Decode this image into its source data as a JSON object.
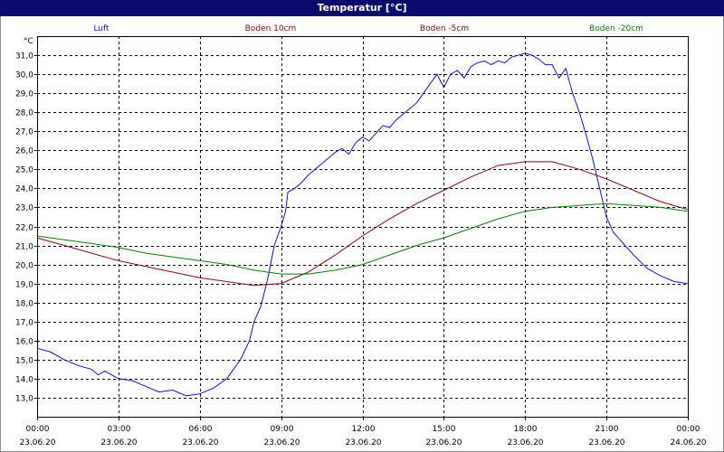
{
  "window": {
    "title": "Temperatur [°C]"
  },
  "chart_data": {
    "type": "line",
    "title": "Temperatur [°C]",
    "ylabel": "°C",
    "ylim": [
      12,
      32
    ],
    "xlim": [
      "23.06.20 00:00",
      "24.06.20 00:00"
    ],
    "grid": true,
    "legend_position": "top",
    "y_ticks": [
      "13,0",
      "14,0",
      "15,0",
      "16,0",
      "17,0",
      "18,0",
      "19,0",
      "20,0",
      "21,0",
      "22,0",
      "23,0",
      "24,0",
      "25,0",
      "26,0",
      "27,0",
      "28,0",
      "29,0",
      "30,0",
      "31,0"
    ],
    "x_ticks": [
      {
        "time": "00:00",
        "date": "23.06.20"
      },
      {
        "time": "03:00",
        "date": "23.06.20"
      },
      {
        "time": "06:00",
        "date": "23.06.20"
      },
      {
        "time": "09:00",
        "date": "23.06.20"
      },
      {
        "time": "12:00",
        "date": "23.06.20"
      },
      {
        "time": "15:00",
        "date": "23.06.20"
      },
      {
        "time": "18:00",
        "date": "23.06.20"
      },
      {
        "time": "21:00",
        "date": "23.06.20"
      },
      {
        "time": "00:00",
        "date": "24.06.20"
      }
    ],
    "series": [
      {
        "name": "Luft",
        "color": "#1010c8",
        "x": [
          "00:00",
          "00:30",
          "01:00",
          "01:30",
          "02:00",
          "02:15",
          "02:30",
          "03:00",
          "03:30",
          "04:00",
          "04:30",
          "05:00",
          "05:30",
          "06:00",
          "06:30",
          "07:00",
          "07:30",
          "07:50",
          "08:00",
          "08:15",
          "08:30",
          "08:45",
          "09:00",
          "09:10",
          "09:15",
          "09:30",
          "09:45",
          "10:00",
          "10:15",
          "10:30",
          "10:45",
          "11:00",
          "11:15",
          "11:30",
          "11:45",
          "12:00",
          "12:15",
          "12:30",
          "12:45",
          "13:00",
          "13:15",
          "13:30",
          "13:45",
          "14:00",
          "14:15",
          "14:30",
          "14:45",
          "15:00",
          "15:15",
          "15:30",
          "15:45",
          "16:00",
          "16:15",
          "16:30",
          "16:45",
          "17:00",
          "17:15",
          "17:30",
          "17:45",
          "18:00",
          "18:15",
          "18:30",
          "18:45",
          "19:00",
          "19:15",
          "19:30",
          "19:45",
          "20:00",
          "20:15",
          "20:30",
          "20:45",
          "21:00",
          "21:15",
          "21:30",
          "22:00",
          "22:30",
          "23:00",
          "23:30",
          "23:59"
        ],
        "values": [
          15.6,
          15.4,
          15.0,
          14.7,
          14.5,
          14.2,
          14.4,
          14.0,
          13.9,
          13.6,
          13.3,
          13.4,
          13.1,
          13.2,
          13.5,
          14.0,
          15.0,
          16.0,
          17.0,
          17.8,
          19.2,
          21.0,
          22.0,
          22.8,
          23.8,
          24.0,
          24.3,
          24.7,
          25.0,
          25.3,
          25.6,
          25.9,
          26.1,
          25.8,
          26.4,
          26.7,
          26.5,
          26.9,
          27.3,
          27.2,
          27.6,
          27.9,
          28.2,
          28.5,
          29.0,
          29.5,
          30.0,
          29.3,
          30.0,
          30.2,
          29.8,
          30.4,
          30.6,
          30.7,
          30.5,
          30.7,
          30.6,
          30.9,
          31.0,
          31.1,
          31.0,
          30.8,
          30.5,
          30.5,
          29.8,
          30.3,
          29.0,
          28.0,
          26.8,
          25.5,
          24.0,
          22.5,
          21.7,
          21.3,
          20.5,
          19.8,
          19.4,
          19.1,
          19.0
        ]
      },
      {
        "name": "Boden 10cm",
        "color": "#7a0e0e",
        "x": [
          "00:00",
          "01:00",
          "02:00",
          "03:00",
          "04:00",
          "05:00",
          "06:00",
          "07:00",
          "08:00",
          "09:00",
          "10:00",
          "11:00",
          "12:00",
          "13:00",
          "14:00",
          "15:00",
          "16:00",
          "17:00",
          "18:00",
          "19:00",
          "20:00",
          "21:00",
          "22:00",
          "23:00",
          "23:59"
        ],
        "values": [
          21.4,
          21.0,
          20.6,
          20.2,
          19.9,
          19.6,
          19.3,
          19.1,
          18.9,
          19.0,
          19.6,
          20.5,
          21.5,
          22.4,
          23.2,
          23.9,
          24.6,
          25.2,
          25.4,
          25.4,
          25.0,
          24.5,
          23.9,
          23.3,
          22.9
        ]
      },
      {
        "name": "Boden -5cm",
        "color": "#7a0e0e",
        "x": [],
        "values": []
      },
      {
        "name": "Boden -20cm",
        "color": "#0c7a0c",
        "x": [
          "00:00",
          "01:00",
          "02:00",
          "03:00",
          "04:00",
          "05:00",
          "06:00",
          "07:00",
          "08:00",
          "09:00",
          "10:00",
          "11:00",
          "12:00",
          "13:00",
          "14:00",
          "15:00",
          "16:00",
          "17:00",
          "18:00",
          "19:00",
          "20:00",
          "21:00",
          "22:00",
          "23:00",
          "23:59"
        ],
        "values": [
          21.5,
          21.3,
          21.1,
          20.9,
          20.6,
          20.4,
          20.2,
          20.0,
          19.7,
          19.5,
          19.5,
          19.7,
          20.0,
          20.5,
          21.0,
          21.4,
          21.9,
          22.4,
          22.8,
          23.0,
          23.1,
          23.2,
          23.1,
          23.0,
          22.8
        ]
      }
    ]
  }
}
